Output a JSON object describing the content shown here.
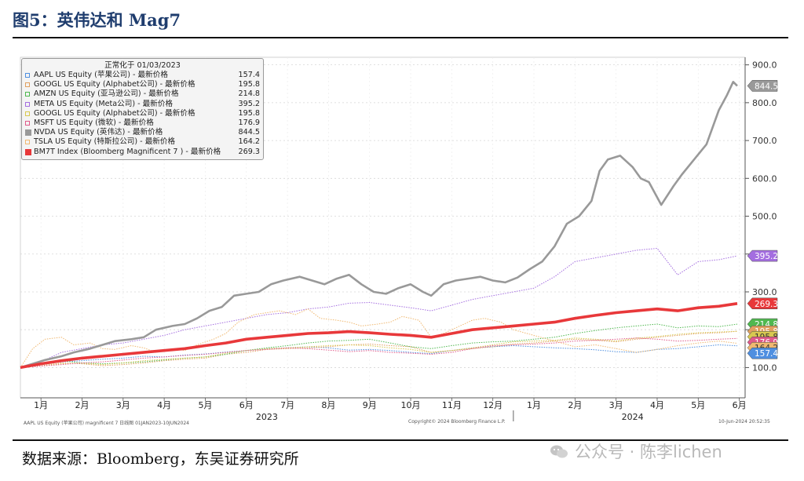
{
  "figure": {
    "title": "图5：英伟达和 Mag7",
    "source": "数据来源：Bloomberg，东吴证券研究所",
    "watermark": "公众号 · 陈李lichen",
    "footer_left": "AAPL US Equity (苹果公司) magnificent 7  日线图 01JAN2023-10JUN2024",
    "footer_center": "Copyright© 2024 Bloomberg Finance L.P.",
    "footer_right": "10-Jun-2024 20:52:35",
    "title_color": "#1f3d6e"
  },
  "chart_data": {
    "type": "line",
    "legend_title": "正常化于 01/03/2023",
    "legend_placement": "top-left",
    "x_labels": [
      "1月",
      "2月",
      "3月",
      "4月",
      "5月",
      "6月",
      "7月",
      "8月",
      "9月",
      "10月",
      "11月",
      "12月",
      "1月",
      "2月",
      "3月",
      "4月",
      "5月",
      "6月"
    ],
    "year_labels": [
      "2023",
      "2024"
    ],
    "yticks": [
      100.0,
      200.0,
      300.0,
      400.0,
      500.0,
      600.0,
      700.0,
      800.0,
      900.0
    ],
    "ytick_labels": [
      "100.0",
      "200.0",
      "300.0",
      "400.0",
      "500.0",
      "600.0",
      "700.0",
      "800.0",
      "900.0"
    ],
    "ylim": [
      20,
      920
    ],
    "x_range_months": [
      0,
      17.45
    ],
    "y_axis_side": "right",
    "grid": true,
    "series": [
      {
        "name": "AAPL US Equity (苹果公司) - 最新价格",
        "last": "157.4",
        "color": "#4f8fe0",
        "style": "dotted",
        "width": 1,
        "marker_order": 6,
        "x": [
          0,
          0.5,
          1,
          1.5,
          2,
          2.5,
          3,
          3.5,
          4,
          4.5,
          5,
          5.5,
          6,
          6.5,
          7,
          7.5,
          8,
          8.5,
          9,
          9.5,
          10,
          10.5,
          11,
          11.5,
          12,
          12.5,
          13,
          13.5,
          14,
          14.5,
          15,
          15.5,
          16,
          16.5,
          17,
          17.45
        ],
        "y": [
          100,
          110,
          115,
          118,
          122,
          125,
          130,
          128,
          133,
          136,
          141,
          145,
          150,
          152,
          155,
          152,
          146,
          148,
          145,
          140,
          137,
          145,
          152,
          155,
          158,
          155,
          152,
          150,
          147,
          142,
          140,
          148,
          150,
          155,
          160,
          157.4
        ]
      },
      {
        "name": "GOOGL US Equity (Alphabet公司) - 最新价格",
        "last": "195.8",
        "color": "#e0a060",
        "style": "dotted",
        "width": 1,
        "marker_order": 5,
        "x": [
          0,
          0.5,
          1,
          1.5,
          2,
          2.5,
          3,
          3.5,
          4,
          4.5,
          5,
          5.5,
          6,
          6.5,
          7,
          7.5,
          8,
          8.5,
          9,
          9.5,
          10,
          10.5,
          11,
          11.5,
          12,
          12.5,
          13,
          13.5,
          14,
          14.5,
          15,
          15.5,
          16,
          16.5,
          17,
          17.45
        ],
        "y": [
          100,
          105,
          112,
          110,
          105,
          108,
          112,
          118,
          122,
          125,
          135,
          140,
          148,
          150,
          152,
          155,
          160,
          162,
          158,
          155,
          140,
          145,
          150,
          155,
          162,
          165,
          170,
          175,
          172,
          168,
          175,
          180,
          185,
          190,
          192,
          195.8
        ]
      },
      {
        "name": "AMZN US Equity (亚马逊公司) - 最新价格",
        "last": "214.8",
        "color": "#4fb84f",
        "style": "dotted",
        "width": 1,
        "marker_order": 4,
        "x": [
          0,
          0.5,
          1,
          1.5,
          2,
          2.5,
          3,
          3.5,
          4,
          4.5,
          5,
          5.5,
          6,
          6.5,
          7,
          7.5,
          8,
          8.5,
          9,
          9.5,
          10,
          10.5,
          11,
          11.5,
          12,
          12.5,
          13,
          13.5,
          14,
          14.5,
          15,
          15.5,
          16,
          16.5,
          17,
          17.45
        ],
        "y": [
          100,
          108,
          118,
          112,
          110,
          112,
          115,
          120,
          125,
          128,
          135,
          145,
          152,
          158,
          165,
          170,
          172,
          175,
          165,
          155,
          150,
          158,
          165,
          168,
          170,
          175,
          180,
          190,
          198,
          205,
          210,
          215,
          205,
          210,
          208,
          214.8
        ]
      },
      {
        "name": "META US Equity (Meta公司) - 最新价格",
        "last": "395.2",
        "color": "#a46ee0",
        "style": "dotted",
        "width": 1,
        "marker_order": 2,
        "x": [
          0,
          0.5,
          1,
          1.5,
          2,
          2.5,
          3,
          3.5,
          4,
          4.5,
          5,
          5.5,
          6,
          6.5,
          7,
          7.5,
          8,
          8.5,
          9,
          9.5,
          10,
          10.5,
          11,
          11.5,
          12,
          12.5,
          13,
          13.5,
          14,
          14.5,
          15,
          15.5,
          16,
          16.5,
          17,
          17.45
        ],
        "y": [
          100,
          115,
          140,
          150,
          160,
          165,
          175,
          185,
          200,
          210,
          220,
          230,
          240,
          245,
          255,
          260,
          270,
          272,
          265,
          258,
          250,
          265,
          280,
          290,
          300,
          310,
          340,
          380,
          390,
          400,
          410,
          415,
          345,
          380,
          385,
          395.2
        ]
      },
      {
        "name": "GOOGL US Equity (Alphabet公司) - 最新价格",
        "last": "195.8",
        "color": "#d8c850",
        "style": "dotted",
        "width": 1,
        "marker_order": 7,
        "x": [
          0,
          0.5,
          1,
          1.5,
          2,
          2.5,
          3,
          3.5,
          4,
          4.5,
          5,
          5.5,
          6,
          6.5,
          7,
          7.5,
          8,
          8.5,
          9,
          9.5,
          10,
          10.5,
          11,
          11.5,
          12,
          12.5,
          13,
          13.5,
          14,
          14.5,
          15,
          15.5,
          16,
          16.5,
          17,
          17.45
        ],
        "y": [
          100,
          104,
          110,
          112,
          108,
          112,
          118,
          122,
          125,
          128,
          138,
          145,
          150,
          152,
          155,
          158,
          160,
          158,
          152,
          148,
          140,
          145,
          152,
          160,
          168,
          170,
          172,
          178,
          175,
          170,
          178,
          182,
          188,
          192,
          194,
          195.8
        ]
      },
      {
        "name": "MSFT US Equity (微软) - 最新价格",
        "last": "176.9",
        "color": "#e05a8a",
        "style": "dotted",
        "width": 1,
        "marker_order": 3,
        "x": [
          0,
          0.5,
          1,
          1.5,
          2,
          2.5,
          3,
          3.5,
          4,
          4.5,
          5,
          5.5,
          6,
          6.5,
          7,
          7.5,
          8,
          8.5,
          9,
          9.5,
          10,
          10.5,
          11,
          11.5,
          12,
          12.5,
          13,
          13.5,
          14,
          14.5,
          15,
          15.5,
          16,
          16.5,
          17,
          17.45
        ],
        "y": [
          100,
          104,
          108,
          112,
          115,
          120,
          125,
          128,
          132,
          135,
          140,
          145,
          148,
          152,
          150,
          146,
          142,
          145,
          140,
          138,
          135,
          140,
          150,
          158,
          160,
          162,
          165,
          170,
          172,
          175,
          178,
          175,
          170,
          172,
          175,
          176.9
        ]
      },
      {
        "name": "NVDA US Equity (英伟达) - 最新价格",
        "last": "844.5",
        "color": "#999999",
        "style": "solid",
        "width": 2.6,
        "marker_order": 0,
        "x": [
          0,
          0.3,
          0.6,
          1,
          1.3,
          1.7,
          2,
          2.3,
          2.7,
          3,
          3.3,
          3.7,
          4,
          4.3,
          4.6,
          4.9,
          5.2,
          5.5,
          5.8,
          6.1,
          6.4,
          6.8,
          7.1,
          7.4,
          7.7,
          8,
          8.3,
          8.6,
          8.9,
          9.2,
          9.5,
          9.8,
          10,
          10.3,
          10.6,
          10.9,
          11.2,
          11.5,
          11.8,
          12.1,
          12.4,
          12.7,
          13,
          13.3,
          13.6,
          13.9,
          14.1,
          14.3,
          14.6,
          14.9,
          15.1,
          15.3,
          15.6,
          15.9,
          16.1,
          16.4,
          16.7,
          17,
          17.2,
          17.35,
          17.45
        ],
        "y": [
          100,
          110,
          120,
          130,
          140,
          150,
          160,
          170,
          175,
          180,
          200,
          210,
          215,
          230,
          250,
          260,
          290,
          295,
          300,
          320,
          330,
          340,
          330,
          320,
          335,
          345,
          320,
          300,
          295,
          310,
          320,
          300,
          290,
          320,
          330,
          335,
          340,
          330,
          325,
          338,
          360,
          380,
          420,
          480,
          500,
          540,
          620,
          650,
          660,
          630,
          600,
          590,
          530,
          580,
          610,
          650,
          690,
          780,
          820,
          855,
          844.5
        ]
      },
      {
        "name": "TSLA US Equity (特斯拉公司) - 最新价格",
        "last": "164.2",
        "color": "#f0b870",
        "style": "dotted",
        "width": 1,
        "marker_order": 8,
        "x": [
          0,
          0.3,
          0.6,
          1,
          1.3,
          1.7,
          2,
          2.3,
          2.7,
          3,
          3.3,
          3.7,
          4,
          4.3,
          4.7,
          5,
          5.3,
          5.7,
          6,
          6.3,
          6.7,
          7,
          7.3,
          7.7,
          8,
          8.3,
          8.7,
          9,
          9.3,
          9.7,
          10,
          10.3,
          10.7,
          11,
          11.3,
          11.7,
          12,
          12.5,
          13,
          13.5,
          14,
          14.5,
          15,
          15.5,
          16,
          16.5,
          17,
          17.45
        ],
        "y": [
          100,
          150,
          175,
          180,
          160,
          165,
          150,
          148,
          158,
          152,
          140,
          150,
          145,
          160,
          175,
          190,
          220,
          240,
          245,
          250,
          240,
          255,
          230,
          225,
          220,
          210,
          215,
          220,
          235,
          225,
          180,
          190,
          210,
          225,
          230,
          220,
          200,
          185,
          170,
          155,
          160,
          150,
          140,
          148,
          158,
          165,
          170,
          164.2
        ]
      },
      {
        "name": "BM7T Index (Bloomberg Magnificent 7 ) - 最新价格",
        "last": "269.3",
        "color": "#e8383a",
        "style": "solid",
        "width": 3.6,
        "marker_order": 1,
        "x": [
          0,
          0.5,
          1,
          1.5,
          2,
          2.5,
          3,
          3.5,
          4,
          4.5,
          5,
          5.5,
          6,
          6.5,
          7,
          7.5,
          8,
          8.5,
          9,
          9.5,
          10,
          10.5,
          11,
          11.5,
          12,
          12.5,
          13,
          13.5,
          14,
          14.5,
          15,
          15.5,
          16,
          16.5,
          17,
          17.45
        ],
        "y": [
          100,
          110,
          118,
          125,
          130,
          135,
          140,
          145,
          150,
          158,
          165,
          175,
          180,
          185,
          190,
          192,
          195,
          192,
          188,
          185,
          180,
          190,
          200,
          205,
          210,
          215,
          220,
          230,
          238,
          245,
          250,
          255,
          250,
          258,
          262,
          269.3
        ]
      }
    ]
  }
}
